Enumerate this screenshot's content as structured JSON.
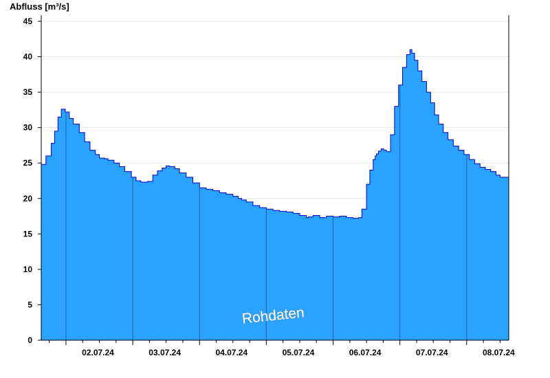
{
  "chart_data": {
    "type": "area",
    "ylabel": "Abfluss [m³/s]",
    "ylim": [
      0,
      46
    ],
    "yticks": [
      0,
      5,
      10,
      15,
      20,
      25,
      30,
      35,
      40,
      45
    ],
    "xlim_days": [
      1.63,
      8.63
    ],
    "day_labels": [
      "02.07.24",
      "03.07.24",
      "04.07.24",
      "05.07.24",
      "06.07.24",
      "07.07.24",
      "08.07.24"
    ],
    "annotation": "Rohdaten",
    "grid": "horizontal",
    "colors": {
      "fill": "#29a3ff",
      "line": "#0000cc",
      "grid": "#e6e6e6",
      "axis": "#000000"
    },
    "series": [
      {
        "x": [
          1.63,
          1.7,
          1.78,
          1.83,
          1.88,
          1.93,
          1.99,
          2.05,
          2.11,
          2.2,
          2.28,
          2.36,
          2.44,
          2.5,
          2.58,
          2.63,
          2.72,
          2.8,
          2.88,
          2.98,
          3.05,
          3.12,
          3.22,
          3.3,
          3.37,
          3.44,
          3.5,
          3.55,
          3.63,
          3.7,
          3.8,
          3.9,
          4.0,
          4.1,
          4.2,
          4.3,
          4.4,
          4.5,
          4.58,
          4.63,
          4.7,
          4.8,
          4.9,
          5.0,
          5.1,
          5.2,
          5.3,
          5.4,
          5.5,
          5.6,
          5.63,
          5.7,
          5.8,
          5.9,
          6.0,
          6.1,
          6.2,
          6.3,
          6.38,
          6.43,
          6.5,
          6.55,
          6.6,
          6.63,
          6.65,
          6.68,
          6.72,
          6.76,
          6.8,
          6.86,
          6.92,
          6.98,
          7.04,
          7.1,
          7.15,
          7.18,
          7.22,
          7.27,
          7.33,
          7.4,
          7.46,
          7.52,
          7.58,
          7.65,
          7.72,
          7.8,
          7.88,
          7.96,
          8.04,
          8.12,
          8.2,
          8.28,
          8.36,
          8.44,
          8.5,
          8.55,
          8.63
        ],
        "y": [
          24.8,
          26,
          27.8,
          29.5,
          31.5,
          32.6,
          32.2,
          31.3,
          30.5,
          29.3,
          28,
          26.8,
          26.2,
          25.7,
          25.6,
          25.4,
          25,
          24.5,
          23.8,
          23,
          22.5,
          22.3,
          22.4,
          23.3,
          23.9,
          24.3,
          24.6,
          24.5,
          24.2,
          23.6,
          23,
          22.2,
          21.5,
          21.3,
          21.1,
          20.8,
          20.6,
          20.3,
          20.0,
          19.8,
          19.5,
          19.0,
          18.7,
          18.5,
          18.3,
          18.2,
          18.1,
          17.9,
          17.6,
          17.3,
          17.4,
          17.6,
          17.3,
          17.5,
          17.4,
          17.5,
          17.3,
          17.2,
          17.3,
          18.5,
          22,
          24,
          25.5,
          26.0,
          26.3,
          26.7,
          27.0,
          26.8,
          26.6,
          29,
          33,
          36,
          38.5,
          40.3,
          41.0,
          40.5,
          39.5,
          38,
          36.5,
          35,
          33.5,
          31.8,
          30.5,
          29.3,
          28.3,
          27.4,
          26.8,
          26.2,
          25.5,
          24.9,
          24.4,
          24.1,
          23.8,
          23.3,
          23.0,
          23.0,
          22.8
        ]
      }
    ]
  }
}
